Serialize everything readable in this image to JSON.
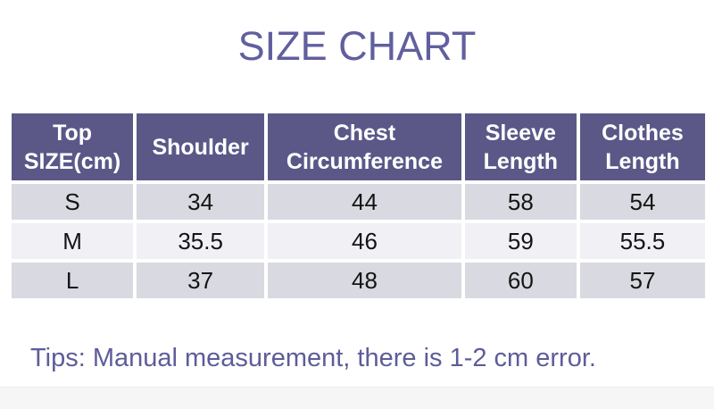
{
  "page": {
    "title": "SIZE CHART",
    "tips": "Tips: Manual measurement, there is 1-2 cm error."
  },
  "table": {
    "columns": [
      "Top SIZE(cm)",
      "Shoulder",
      "Chest Circumference",
      "Sleeve Length",
      "Clothes Length"
    ],
    "rows": [
      {
        "cells": [
          "S",
          "34",
          "44",
          "58",
          "54"
        ]
      },
      {
        "cells": [
          "M",
          "35.5",
          "46",
          "59",
          "55.5"
        ]
      },
      {
        "cells": [
          "L",
          "37",
          "48",
          "60",
          "57"
        ]
      }
    ]
  },
  "chart_data": {
    "type": "table",
    "title": "SIZE CHART",
    "unit": "cm",
    "columns": [
      "Top SIZE(cm)",
      "Shoulder",
      "Chest Circumference",
      "Sleeve Length",
      "Clothes Length"
    ],
    "rows": [
      [
        "S",
        34,
        44,
        58,
        54
      ],
      [
        "M",
        35.5,
        46,
        59,
        55.5
      ],
      [
        "L",
        37,
        48,
        60,
        57
      ]
    ],
    "note": "Tips: Manual measurement, there is 1-2 cm error."
  },
  "colors": {
    "title_text": "#615f9e",
    "header_bg": "#5b5888",
    "header_text": "#ffffff",
    "row_gray_bg": "#d9d9e1",
    "row_white_bg": "#f0f0f5",
    "cell_text": "#141414",
    "tips_text": "#5e5c99",
    "bottom_bar_bg": "#f6f6f7"
  }
}
